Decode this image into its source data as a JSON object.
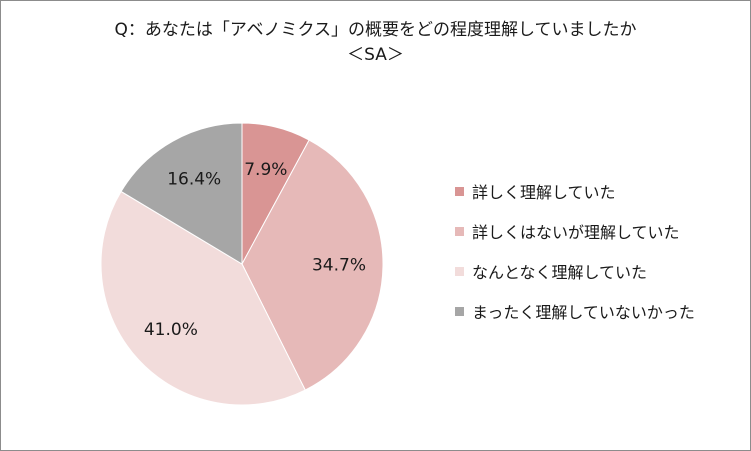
{
  "chart_data": {
    "type": "pie",
    "title_line1": "Q：あなたは「アベノミクス」の概要をどの程度理解していましたか",
    "title_line2": "＜SA＞",
    "categories": [
      "詳しく理解していた",
      "詳しくはないが理解していた",
      "なんとなく理解していた",
      "まったく理解していないかった"
    ],
    "values": [
      7.9,
      34.7,
      41.0,
      16.4
    ],
    "labels": [
      "7.9%",
      "34.7%",
      "41.0%",
      "16.4%"
    ],
    "colors": [
      "#d99594",
      "#e6b9b8",
      "#f2dcdb",
      "#a6a6a6"
    ],
    "legend_position": "right"
  }
}
